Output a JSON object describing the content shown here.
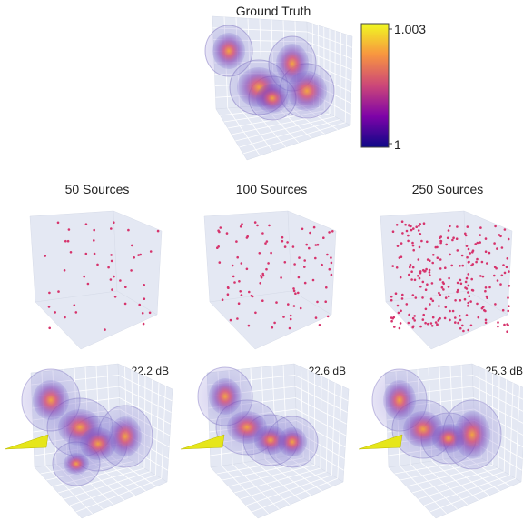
{
  "top": {
    "title": "Ground Truth",
    "colorbar": {
      "max_label": "1.003",
      "min_label": "1",
      "colors": [
        "#fde725",
        "#f89540",
        "#e16462",
        "#b12a90",
        "#6a00a8",
        "#0d0887"
      ]
    }
  },
  "sources": [
    {
      "title": "50 Sources",
      "count": 50
    },
    {
      "title": "100 Sources",
      "count": 100
    },
    {
      "title": "250 Sources",
      "count": 250
    }
  ],
  "reconstructions": [
    {
      "psnr_label": "22.2 dB"
    },
    {
      "psnr_label": "22.6 dB"
    },
    {
      "psnr_label": "25.3 dB"
    }
  ],
  "colors": {
    "point": "#d6336c",
    "grid_bg": "#e4e8f3",
    "grid_line": "#ffffff",
    "cone": "#e6e61a"
  }
}
